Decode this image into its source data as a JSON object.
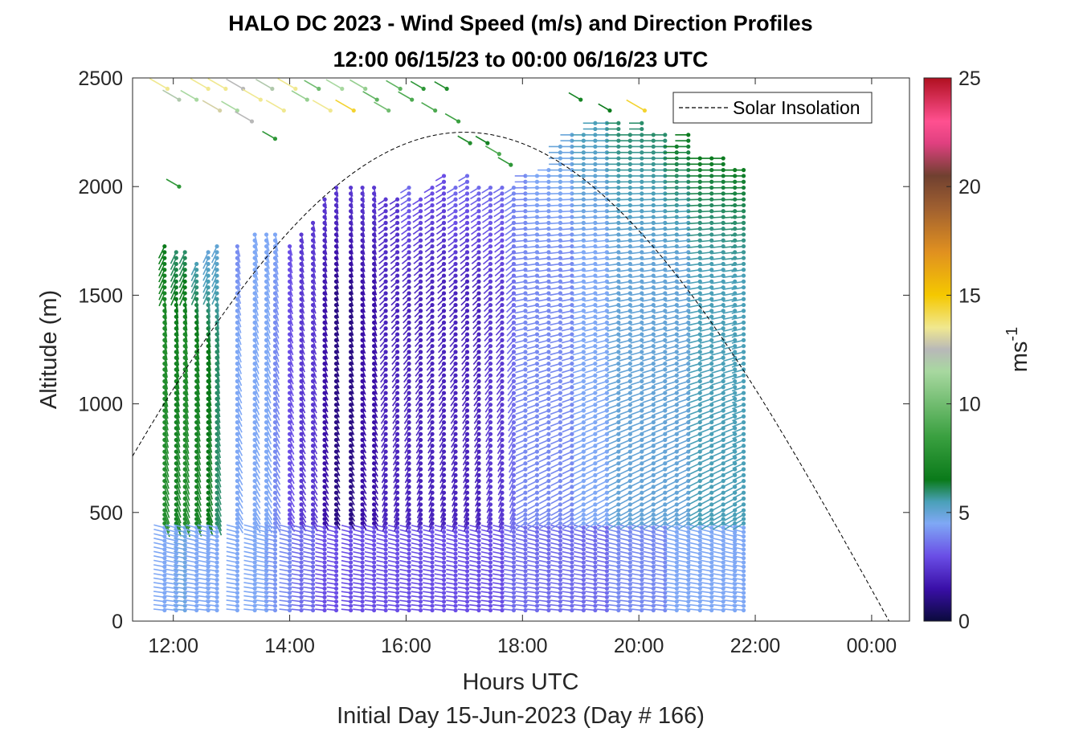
{
  "chart_data": {
    "type": "scatter",
    "title": "HALO DC 2023 - Wind Speed (m/s) and Direction Profiles",
    "subtitle": "12:00 06/15/23 to 00:00 06/16/23  UTC",
    "xlabel": "Hours UTC",
    "xsublabel": "Initial Day 15-Jun-2023 (Day # 166)",
    "ylabel": "Altitude (m)",
    "x_ticks": [
      "12:00",
      "14:00",
      "16:00",
      "18:00",
      "20:00",
      "22:00",
      "00:00"
    ],
    "x_tick_hours": [
      12,
      14,
      16,
      18,
      20,
      22,
      24
    ],
    "xlim_hours": [
      11.3,
      24.65
    ],
    "y_ticks": [
      "0",
      "500",
      "1000",
      "1500",
      "2000",
      "2500"
    ],
    "y_tick_values": [
      0,
      500,
      1000,
      1500,
      2000,
      2500
    ],
    "ylim": [
      0,
      2500
    ],
    "grid": false,
    "legend": {
      "entries": [
        "Solar Insolation"
      ],
      "placement": "top-right"
    },
    "colorbar": {
      "label": "ms",
      "label_superscript": "-1",
      "range": [
        0,
        25
      ],
      "ticks": [
        "0",
        "5",
        "10",
        "15",
        "20",
        "25"
      ],
      "tick_values": [
        0,
        5,
        10,
        15,
        20,
        25
      ],
      "colors": [
        "#0a0a3c",
        "#3a0fa8",
        "#6a4ee6",
        "#7fa8f5",
        "#4aa0b8",
        "#0a7a1a",
        "#3aa040",
        "#a8d8a0",
        "#b8b8b8",
        "#f0e890",
        "#f5c800",
        "#e09020",
        "#a06030",
        "#704030",
        "#e04080",
        "#ff5090",
        "#b01020"
      ],
      "color_stops": [
        0,
        1.5,
        3,
        4.5,
        5.5,
        6.5,
        8.5,
        11.5,
        12.5,
        13.5,
        15,
        17,
        19,
        20.5,
        22,
        23,
        25
      ]
    },
    "solar_insolation": {
      "peak_hour": 17.0,
      "peak_altitude": 2250,
      "half_width_hours": 7.3
    },
    "wind_profiles": [
      {
        "hour": 11.85,
        "bottom": 50,
        "top": 1750,
        "speed_low": 4.5,
        "speed_mid": 7.5,
        "speed_high": 6.5,
        "dir_low": 290,
        "dir_high": 200
      },
      {
        "hour": 12.05,
        "bottom": 50,
        "top": 1700,
        "speed_low": 4.5,
        "speed_mid": 7.0,
        "speed_high": 6.0,
        "dir_low": 290,
        "dir_high": 200
      },
      {
        "hour": 12.2,
        "bottom": 50,
        "top": 1700,
        "speed_low": 4.8,
        "speed_mid": 7.5,
        "speed_high": 6.0,
        "dir_low": 290,
        "dir_high": 200
      },
      {
        "hour": 12.4,
        "bottom": 50,
        "top": 1650,
        "speed_low": 4.5,
        "speed_mid": 7.0,
        "speed_high": 5.5,
        "dir_low": 290,
        "dir_high": 200
      },
      {
        "hour": 12.6,
        "bottom": 50,
        "top": 1700,
        "speed_low": 4.5,
        "speed_mid": 6.5,
        "speed_high": 5.0,
        "dir_low": 290,
        "dir_high": 200
      },
      {
        "hour": 12.75,
        "bottom": 50,
        "top": 1750,
        "speed_low": 4.5,
        "speed_mid": 6.0,
        "speed_high": 5.0,
        "dir_low": 290,
        "dir_high": 200
      },
      {
        "hour": 13.1,
        "bottom": 50,
        "top": 1750,
        "speed_low": 4.5,
        "speed_mid": 4.5,
        "speed_high": 4.0,
        "dir_low": 290,
        "dir_high": 200
      },
      {
        "hour": 13.4,
        "bottom": 50,
        "top": 1800,
        "speed_low": 4.5,
        "speed_mid": 4.5,
        "speed_high": 4.5,
        "dir_low": 290,
        "dir_high": 200
      },
      {
        "hour": 13.6,
        "bottom": 50,
        "top": 1800,
        "speed_low": 4.5,
        "speed_mid": 4.5,
        "speed_high": 4.5,
        "dir_low": 290,
        "dir_high": 200
      },
      {
        "hour": 13.75,
        "bottom": 50,
        "top": 1800,
        "speed_low": 4.2,
        "speed_mid": 4.0,
        "speed_high": 4.5,
        "dir_low": 290,
        "dir_high": 200
      },
      {
        "hour": 14.0,
        "bottom": 50,
        "top": 1750,
        "speed_low": 4.0,
        "speed_mid": 3.0,
        "speed_high": 3.0,
        "dir_low": 290,
        "dir_high": 200
      },
      {
        "hour": 14.2,
        "bottom": 50,
        "top": 1800,
        "speed_low": 3.5,
        "speed_mid": 2.5,
        "speed_high": 2.5,
        "dir_low": 290,
        "dir_high": 200
      },
      {
        "hour": 14.4,
        "bottom": 50,
        "top": 1850,
        "speed_low": 3.5,
        "speed_mid": 2.5,
        "speed_high": 2.5,
        "dir_low": 290,
        "dir_high": 200
      },
      {
        "hour": 14.6,
        "bottom": 50,
        "top": 1950,
        "speed_low": 3.0,
        "speed_mid": 1.5,
        "speed_high": 2.5,
        "dir_low": 290,
        "dir_high": 200
      },
      {
        "hour": 14.8,
        "bottom": 50,
        "top": 2000,
        "speed_low": 3.0,
        "speed_mid": 1.0,
        "speed_high": 2.5,
        "dir_low": 290,
        "dir_high": 200
      },
      {
        "hour": 15.05,
        "bottom": 50,
        "top": 2000,
        "speed_low": 3.0,
        "speed_mid": 1.0,
        "speed_high": 2.5,
        "dir_low": 290,
        "dir_high": 200
      },
      {
        "hour": 15.25,
        "bottom": 50,
        "top": 2000,
        "speed_low": 3.0,
        "speed_mid": 1.5,
        "speed_high": 2.5,
        "dir_low": 290,
        "dir_high": 200
      },
      {
        "hour": 15.45,
        "bottom": 50,
        "top": 2000,
        "speed_low": 3.0,
        "speed_mid": 1.5,
        "speed_high": 2.5,
        "dir_low": 290,
        "dir_high": 200
      },
      {
        "hour": 15.65,
        "bottom": 50,
        "top": 1950,
        "speed_low": 3.0,
        "speed_mid": 2.0,
        "speed_high": 2.5,
        "dir_low": 290,
        "dir_high": 200
      },
      {
        "hour": 15.85,
        "bottom": 50,
        "top": 1950,
        "speed_low": 3.0,
        "speed_mid": 2.0,
        "speed_high": 2.5,
        "dir_low": 290,
        "dir_high": 200
      },
      {
        "hour": 16.05,
        "bottom": 50,
        "top": 2000,
        "speed_low": 3.0,
        "speed_mid": 2.0,
        "speed_high": 3.5,
        "dir_low": 290,
        "dir_high": 200
      },
      {
        "hour": 16.25,
        "bottom": 50,
        "top": 1950,
        "speed_low": 3.0,
        "speed_mid": 2.0,
        "speed_high": 3.0,
        "dir_low": 290,
        "dir_high": 200
      },
      {
        "hour": 16.45,
        "bottom": 50,
        "top": 2000,
        "speed_low": 3.0,
        "speed_mid": 2.0,
        "speed_high": 3.0,
        "dir_low": 290,
        "dir_high": 200
      },
      {
        "hour": 16.65,
        "bottom": 50,
        "top": 2050,
        "speed_low": 3.0,
        "speed_mid": 2.0,
        "speed_high": 3.0,
        "dir_low": 290,
        "dir_high": 200
      },
      {
        "hour": 16.85,
        "bottom": 50,
        "top": 2000,
        "speed_low": 3.0,
        "speed_mid": 2.0,
        "speed_high": 3.5,
        "dir_low": 290,
        "dir_high": 200
      },
      {
        "hour": 17.05,
        "bottom": 50,
        "top": 2050,
        "speed_low": 3.0,
        "speed_mid": 2.0,
        "speed_high": 3.5,
        "dir_low": 290,
        "dir_high": 200
      },
      {
        "hour": 17.25,
        "bottom": 50,
        "top": 2000,
        "speed_low": 3.0,
        "speed_mid": 2.0,
        "speed_high": 3.5,
        "dir_low": 290,
        "dir_high": 200
      },
      {
        "hour": 17.45,
        "bottom": 50,
        "top": 2000,
        "speed_low": 3.0,
        "speed_mid": 2.5,
        "speed_high": 3.5,
        "dir_low": 290,
        "dir_high": 200
      },
      {
        "hour": 17.65,
        "bottom": 50,
        "top": 2000,
        "speed_low": 3.0,
        "speed_mid": 2.5,
        "speed_high": 3.5,
        "dir_low": 290,
        "dir_high": 200
      },
      {
        "hour": 17.85,
        "bottom": 50,
        "top": 2000,
        "speed_low": 3.5,
        "speed_mid": 3.5,
        "speed_high": 4.0,
        "dir_low": 290,
        "dir_high": 200
      },
      {
        "hour": 18.05,
        "bottom": 50,
        "top": 2050,
        "speed_low": 3.5,
        "speed_mid": 4.0,
        "speed_high": 4.0,
        "dir_low": 290,
        "dir_high": 200
      },
      {
        "hour": 18.25,
        "bottom": 50,
        "top": 2050,
        "speed_low": 3.5,
        "speed_mid": 4.0,
        "speed_high": 4.5,
        "dir_low": 290,
        "dir_high": 200
      },
      {
        "hour": 18.45,
        "bottom": 50,
        "top": 2100,
        "speed_low": 3.5,
        "speed_mid": 4.0,
        "speed_high": 4.5,
        "dir_low": 290,
        "dir_high": 200
      },
      {
        "hour": 18.65,
        "bottom": 50,
        "top": 2200,
        "speed_low": 3.5,
        "speed_mid": 4.0,
        "speed_high": 5.0,
        "dir_low": 290,
        "dir_high": 200
      },
      {
        "hour": 18.85,
        "bottom": 50,
        "top": 2250,
        "speed_low": 3.5,
        "speed_mid": 4.0,
        "speed_high": 5.0,
        "dir_low": 290,
        "dir_high": 200
      },
      {
        "hour": 19.05,
        "bottom": 50,
        "top": 2250,
        "speed_low": 3.5,
        "speed_mid": 4.5,
        "speed_high": 5.5,
        "dir_low": 290,
        "dir_high": 200
      },
      {
        "hour": 19.25,
        "bottom": 50,
        "top": 2300,
        "speed_low": 3.5,
        "speed_mid": 4.5,
        "speed_high": 5.5,
        "dir_low": 290,
        "dir_high": 200
      },
      {
        "hour": 19.45,
        "bottom": 50,
        "top": 2300,
        "speed_low": 3.5,
        "speed_mid": 4.5,
        "speed_high": 5.5,
        "dir_low": 290,
        "dir_high": 200
      },
      {
        "hour": 19.65,
        "bottom": 50,
        "top": 2300,
        "speed_low": 4.0,
        "speed_mid": 5.0,
        "speed_high": 6.0,
        "dir_low": 290,
        "dir_high": 200
      },
      {
        "hour": 19.85,
        "bottom": 50,
        "top": 2250,
        "speed_low": 4.0,
        "speed_mid": 5.0,
        "speed_high": 6.0,
        "dir_low": 290,
        "dir_high": 200
      },
      {
        "hour": 20.05,
        "bottom": 50,
        "top": 2300,
        "speed_low": 4.0,
        "speed_mid": 5.0,
        "speed_high": 6.0,
        "dir_low": 290,
        "dir_high": 200
      },
      {
        "hour": 20.25,
        "bottom": 50,
        "top": 2250,
        "speed_low": 4.0,
        "speed_mid": 5.0,
        "speed_high": 6.0,
        "dir_low": 290,
        "dir_high": 200
      },
      {
        "hour": 20.45,
        "bottom": 50,
        "top": 2250,
        "speed_low": 4.0,
        "speed_mid": 5.0,
        "speed_high": 6.0,
        "dir_low": 290,
        "dir_high": 200
      },
      {
        "hour": 20.65,
        "bottom": 50,
        "top": 2200,
        "speed_low": 4.5,
        "speed_mid": 5.0,
        "speed_high": 6.5,
        "dir_low": 290,
        "dir_high": 200
      },
      {
        "hour": 20.85,
        "bottom": 50,
        "top": 2250,
        "speed_low": 4.5,
        "speed_mid": 5.0,
        "speed_high": 6.5,
        "dir_low": 290,
        "dir_high": 200
      },
      {
        "hour": 21.05,
        "bottom": 50,
        "top": 2150,
        "speed_low": 4.5,
        "speed_mid": 5.5,
        "speed_high": 6.5,
        "dir_low": 290,
        "dir_high": 200
      },
      {
        "hour": 21.25,
        "bottom": 50,
        "top": 2150,
        "speed_low": 4.5,
        "speed_mid": 5.5,
        "speed_high": 6.5,
        "dir_low": 290,
        "dir_high": 200
      },
      {
        "hour": 21.45,
        "bottom": 50,
        "top": 2150,
        "speed_low": 4.5,
        "speed_mid": 5.5,
        "speed_high": 6.5,
        "dir_low": 290,
        "dir_high": 200
      },
      {
        "hour": 21.65,
        "bottom": 50,
        "top": 2100,
        "speed_low": 4.5,
        "speed_mid": 5.5,
        "speed_high": 6.5,
        "dir_low": 290,
        "dir_high": 200
      },
      {
        "hour": 21.8,
        "bottom": 50,
        "top": 2100,
        "speed_low": 4.5,
        "speed_mid": 5.5,
        "speed_high": 6.5,
        "dir_low": 290,
        "dir_high": 200
      }
    ],
    "upper_barbs": [
      {
        "hour": 11.9,
        "alt": 2450,
        "speed": 13.5
      },
      {
        "hour": 12.1,
        "alt": 2400,
        "speed": 12.0
      },
      {
        "hour": 12.4,
        "alt": 2400,
        "speed": 11.5
      },
      {
        "hour": 12.6,
        "alt": 2450,
        "speed": 13.5
      },
      {
        "hour": 12.8,
        "alt": 2350,
        "speed": 13.0
      },
      {
        "hour": 12.9,
        "alt": 2450,
        "speed": 13.5
      },
      {
        "hour": 13.1,
        "alt": 2350,
        "speed": 11.5
      },
      {
        "hour": 13.2,
        "alt": 2450,
        "speed": 12.5
      },
      {
        "hour": 13.35,
        "alt": 2300,
        "speed": 12.5
      },
      {
        "hour": 13.5,
        "alt": 2400,
        "speed": 13.5
      },
      {
        "hour": 13.7,
        "alt": 2450,
        "speed": 12.0
      },
      {
        "hour": 13.9,
        "alt": 2350,
        "speed": 13.5
      },
      {
        "hour": 14.1,
        "alt": 2450,
        "speed": 13.5
      },
      {
        "hour": 14.3,
        "alt": 2400,
        "speed": 11.0
      },
      {
        "hour": 14.5,
        "alt": 2450,
        "speed": 10.0
      },
      {
        "hour": 14.7,
        "alt": 2350,
        "speed": 13.5
      },
      {
        "hour": 14.9,
        "alt": 2450,
        "speed": 11.5
      },
      {
        "hour": 15.1,
        "alt": 2350,
        "speed": 14.5
      },
      {
        "hour": 15.3,
        "alt": 2450,
        "speed": 11.0
      },
      {
        "hour": 15.5,
        "alt": 2400,
        "speed": 9.5
      },
      {
        "hour": 15.7,
        "alt": 2350,
        "speed": 10.0
      },
      {
        "hour": 15.9,
        "alt": 2450,
        "speed": 9.5
      },
      {
        "hour": 16.1,
        "alt": 2400,
        "speed": 9.0
      },
      {
        "hour": 16.3,
        "alt": 2450,
        "speed": 8.0
      },
      {
        "hour": 16.5,
        "alt": 2350,
        "speed": 9.0
      },
      {
        "hour": 16.7,
        "alt": 2450,
        "speed": 7.5
      },
      {
        "hour": 16.9,
        "alt": 2300,
        "speed": 8.5
      },
      {
        "hour": 17.1,
        "alt": 2200,
        "speed": 7.5
      },
      {
        "hour": 17.4,
        "alt": 2200,
        "speed": 7.0
      },
      {
        "hour": 17.6,
        "alt": 2150,
        "speed": 9.0
      },
      {
        "hour": 17.8,
        "alt": 2100,
        "speed": 8.0
      },
      {
        "hour": 13.75,
        "alt": 2220,
        "speed": 8.0
      },
      {
        "hour": 12.1,
        "alt": 2000,
        "speed": 8.0
      },
      {
        "hour": 19.0,
        "alt": 2400,
        "speed": 7.0
      },
      {
        "hour": 19.5,
        "alt": 2350,
        "speed": 6.5
      },
      {
        "hour": 20.1,
        "alt": 2350,
        "speed": 14.5
      }
    ]
  }
}
